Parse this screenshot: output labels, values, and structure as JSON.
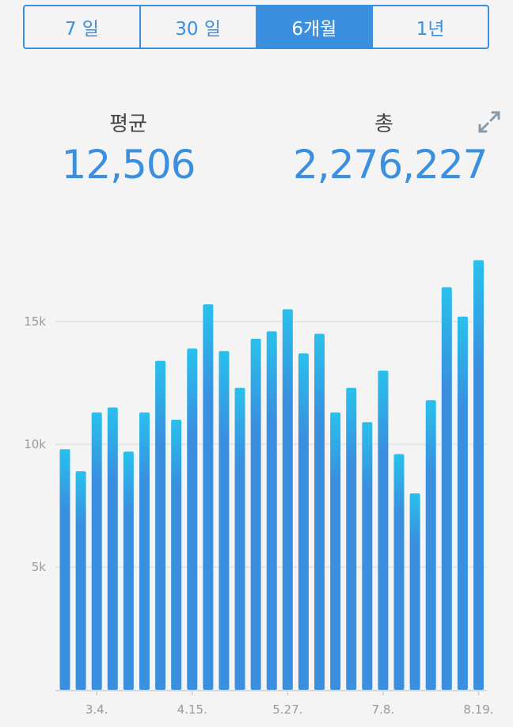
{
  "tabs": [
    {
      "label": "7 일",
      "active": false
    },
    {
      "label": "30 일",
      "active": false
    },
    {
      "label": "6개월",
      "active": true
    },
    {
      "label": "1년",
      "active": false
    }
  ],
  "stats": {
    "average_label": "평균",
    "average_value": "12,506",
    "total_label": "총",
    "total_value": "2,276,227"
  },
  "icons": {
    "expand": "expand-arrows-icon"
  },
  "colors": {
    "accent": "#3a8fdf",
    "bar_bottom": "#3a8fdf",
    "bar_top": "#29c0ec",
    "grid": "#e2e2e2"
  },
  "chart_data": {
    "type": "bar",
    "title": "",
    "xlabel": "",
    "ylabel": "",
    "ylim": [
      0,
      18000
    ],
    "yticks": [
      5000,
      10000,
      15000
    ],
    "ytick_labels": [
      "5k",
      "10k",
      "15k"
    ],
    "xtick_labels": [
      {
        "label": "3.4.",
        "index": 2
      },
      {
        "label": "4.15.",
        "index": 8
      },
      {
        "label": "5.27.",
        "index": 14
      },
      {
        "label": "7.8.",
        "index": 20
      },
      {
        "label": "8.19.",
        "index": 26
      }
    ],
    "grid": true,
    "values": [
      9800,
      8900,
      11300,
      11500,
      9700,
      11300,
      13400,
      11000,
      13900,
      15700,
      13800,
      12300,
      14300,
      14600,
      15500,
      13700,
      14500,
      11300,
      12300,
      10900,
      13000,
      9600,
      8000,
      11800,
      16400,
      15200,
      17500
    ]
  }
}
